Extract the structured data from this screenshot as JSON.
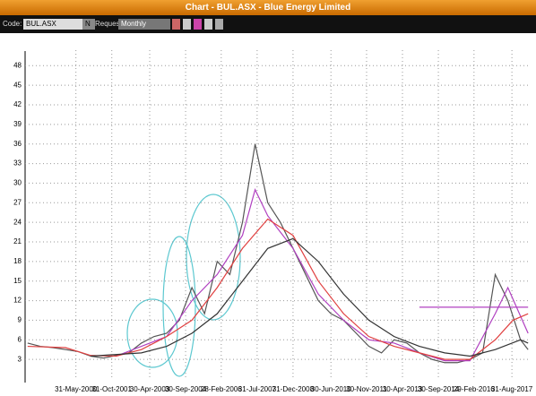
{
  "window": {
    "title": "Chart - BUL.ASX - Blue Energy Limited"
  },
  "toolbar": {
    "code_label": "Code:",
    "code": "BUL.ASX",
    "n_button": "N",
    "request_label": "Request",
    "period": "Monthly"
  },
  "chart_data": {
    "type": "line",
    "xlim": [
      1998.4,
      2018.4
    ],
    "ylim": [
      0,
      49
    ],
    "xticks": [
      {
        "value": 2000.41,
        "label": "31-May-2000"
      },
      {
        "value": 2001.83,
        "label": "31-Oct-2001"
      },
      {
        "value": 2003.33,
        "label": "30-Apr-2003"
      },
      {
        "value": 2004.75,
        "label": "30-Sep-2004"
      },
      {
        "value": 2006.16,
        "label": "28-Feb-2006"
      },
      {
        "value": 2007.58,
        "label": "31-Jul-2007"
      },
      {
        "value": 2009.0,
        "label": "31-Dec-2008"
      },
      {
        "value": 2010.5,
        "label": "30-Jun-2010"
      },
      {
        "value": 2011.91,
        "label": "30-Nov-2011"
      },
      {
        "value": 2013.33,
        "label": "30-Apr-2013"
      },
      {
        "value": 2014.75,
        "label": "30-Sep-2014"
      },
      {
        "value": 2016.16,
        "label": "29-Feb-2016"
      },
      {
        "value": 2017.66,
        "label": "31-Aug-2017"
      }
    ],
    "yticks": [
      3,
      6,
      9,
      12,
      15,
      18,
      21,
      24,
      27,
      30,
      33,
      36,
      39,
      42,
      45,
      48
    ],
    "grid": true,
    "series": [
      {
        "color": "#555555",
        "x": [
          1998.5,
          1999,
          1999.5,
          2000,
          2000.5,
          2001,
          2001.5,
          2002,
          2002.5,
          2003,
          2003.5,
          2004,
          2004.5,
          2005,
          2005.5,
          2006,
          2006.5,
          2007,
          2007.5,
          2008,
          2008.5,
          2009,
          2009.5,
          2010,
          2010.5,
          2011,
          2011.5,
          2012,
          2012.5,
          2013,
          2013.5,
          2014,
          2014.5,
          2015,
          2015.5,
          2016,
          2016.5,
          2017,
          2017.5,
          2018,
          2018.3
        ],
        "values": [
          5.5,
          5,
          4.8,
          4.5,
          4.2,
          3.5,
          3.2,
          3.6,
          4,
          5.5,
          6.5,
          7,
          9,
          14,
          10,
          18,
          16,
          24,
          36,
          27,
          24,
          20,
          16,
          12,
          10,
          9,
          7,
          5,
          4,
          6,
          5.5,
          4,
          3,
          2.5,
          2.5,
          3,
          4,
          16,
          12,
          6,
          4.5
        ]
      },
      {
        "color": "#b040c0",
        "x": [
          2002,
          2003,
          2004,
          2005,
          2006,
          2007,
          2007.5,
          2008,
          2009,
          2010,
          2011,
          2012,
          2013,
          2014,
          2015,
          2016,
          2017,
          2017.5,
          2018.3
        ],
        "values": [
          3.5,
          5,
          6.5,
          12,
          16,
          22,
          29,
          25,
          20,
          13,
          9,
          6,
          5.5,
          4,
          2.8,
          2.8,
          10,
          14,
          7
        ]
      },
      {
        "color": "#b040c0",
        "x": [
          2014,
          2018.3
        ],
        "values": [
          11,
          11
        ]
      },
      {
        "color": "#e04040",
        "x": [
          1998.5,
          2000,
          2001,
          2002,
          2003,
          2004,
          2005,
          2006,
          2007,
          2008,
          2009,
          2010,
          2011,
          2012,
          2013,
          2014,
          2015,
          2016,
          2017,
          2017.7,
          2018.3
        ],
        "values": [
          5,
          4.8,
          3.6,
          3.5,
          4.5,
          6.5,
          9,
          14,
          20,
          24.5,
          22,
          15,
          10,
          6.5,
          5,
          4,
          3,
          3,
          6,
          9,
          10
        ]
      },
      {
        "color": "#333333",
        "x": [
          2001,
          2003,
          2004,
          2005,
          2006,
          2007,
          2008,
          2009,
          2010,
          2011,
          2012,
          2013,
          2014,
          2015,
          2016,
          2017,
          2018,
          2018.3
        ],
        "values": [
          3.5,
          4,
          5,
          7,
          10,
          15,
          20,
          21.5,
          18,
          13,
          9,
          6.5,
          5,
          4,
          3.5,
          4.5,
          6,
          5.5
        ]
      }
    ]
  }
}
